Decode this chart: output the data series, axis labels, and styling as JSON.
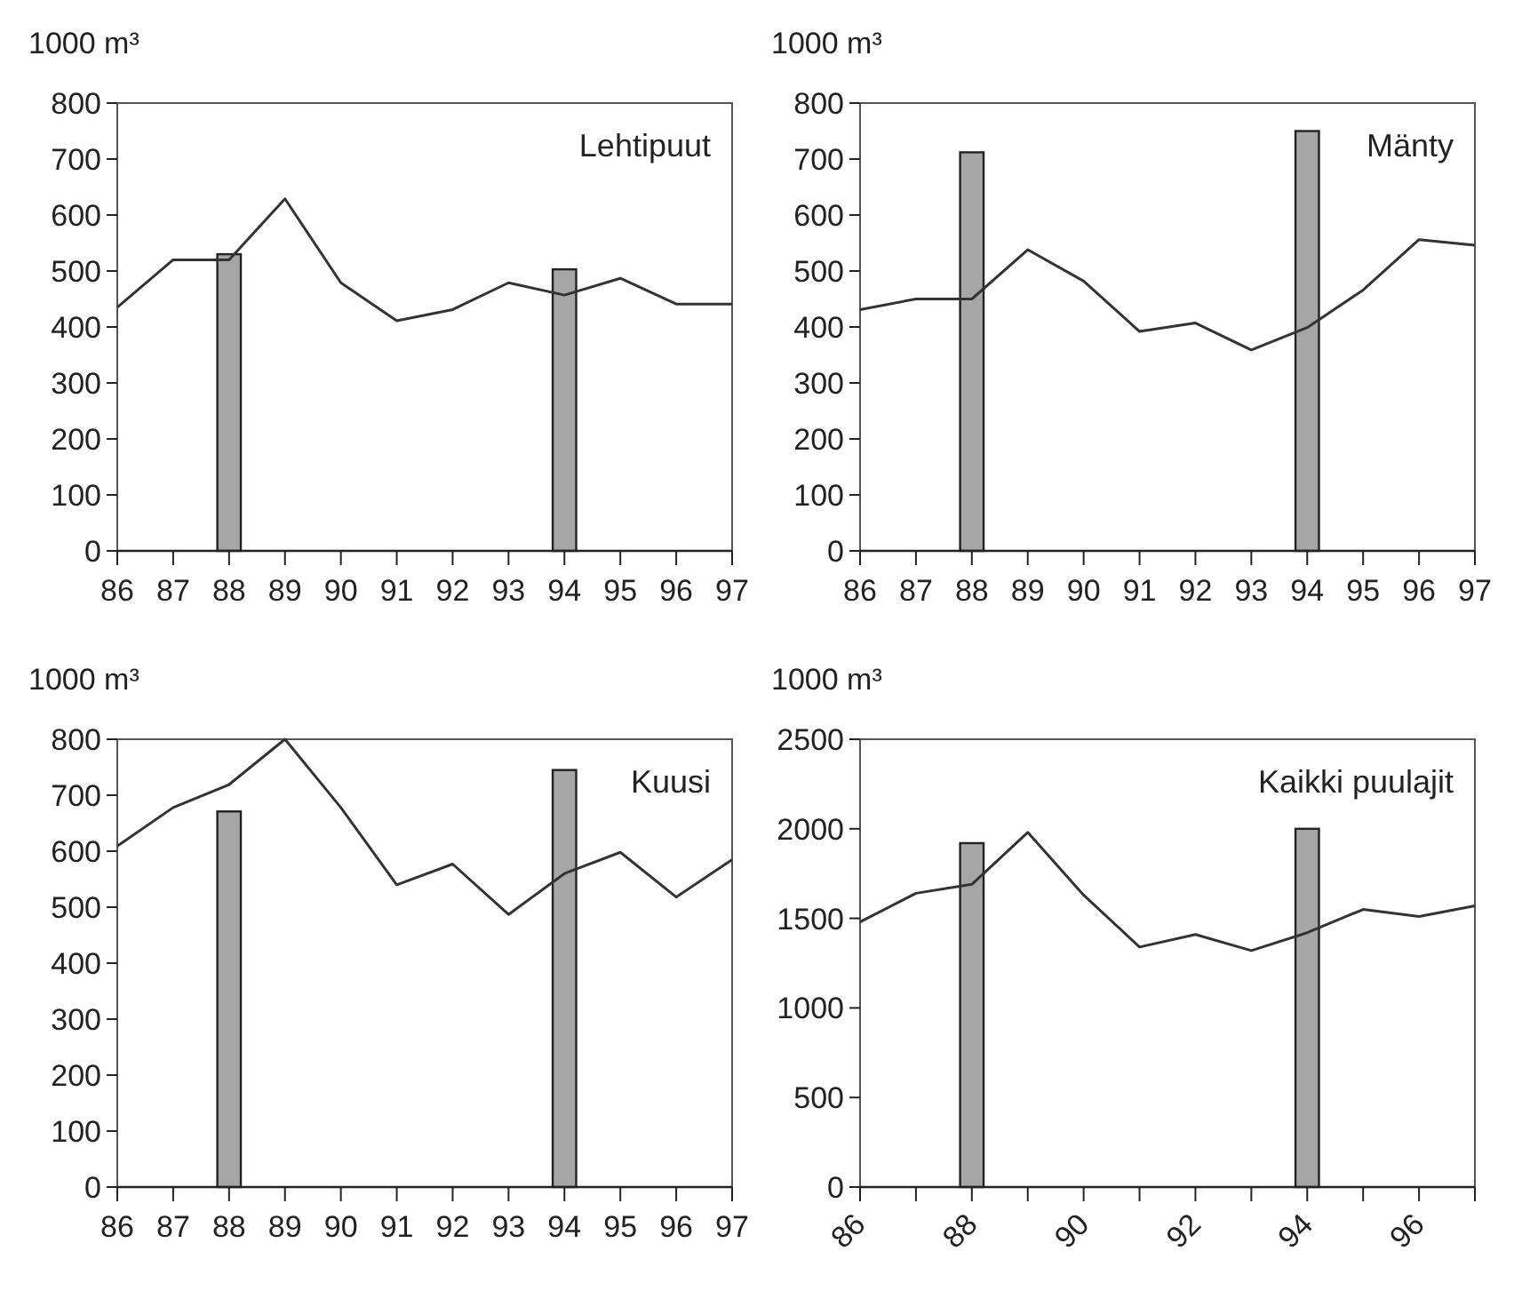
{
  "chart_data": [
    {
      "type": "line",
      "title": "Lehtipuut",
      "ylabel": "1000 m³",
      "categories": [
        "86",
        "87",
        "88",
        "89",
        "90",
        "91",
        "92",
        "93",
        "94",
        "95",
        "96",
        "97"
      ],
      "ylim": [
        0,
        800
      ],
      "yticks": [
        0,
        100,
        200,
        300,
        400,
        500,
        600,
        700,
        800
      ],
      "series": [
        {
          "type": "bar",
          "color": "#a6a6a6",
          "values": [
            null,
            null,
            530,
            null,
            null,
            null,
            null,
            null,
            503,
            null,
            null,
            null
          ]
        },
        {
          "color": "#333333",
          "values": [
            435,
            520,
            520,
            629,
            479,
            411,
            431,
            479,
            457,
            487,
            441,
            441
          ]
        }
      ]
    },
    {
      "type": "line",
      "title": "Mänty",
      "ylabel": "1000 m³",
      "categories": [
        "86",
        "87",
        "88",
        "89",
        "90",
        "91",
        "92",
        "93",
        "94",
        "95",
        "96",
        "97"
      ],
      "ylim": [
        0,
        800
      ],
      "yticks": [
        0,
        100,
        200,
        300,
        400,
        500,
        600,
        700,
        800
      ],
      "series": [
        {
          "type": "bar",
          "color": "#a6a6a6",
          "values": [
            null,
            null,
            712,
            null,
            null,
            null,
            null,
            null,
            750,
            null,
            null,
            null
          ]
        },
        {
          "color": "#333333",
          "values": [
            431,
            450,
            450,
            538,
            482,
            392,
            407,
            359,
            399,
            466,
            556,
            546
          ]
        }
      ]
    },
    {
      "type": "line",
      "title": "Kuusi",
      "ylabel": "1000 m³",
      "categories": [
        "86",
        "87",
        "88",
        "89",
        "90",
        "91",
        "92",
        "93",
        "94",
        "95",
        "96",
        "97"
      ],
      "ylim": [
        0,
        800
      ],
      "yticks": [
        0,
        100,
        200,
        300,
        400,
        500,
        600,
        700,
        800
      ],
      "series": [
        {
          "type": "bar",
          "color": "#a6a6a6",
          "values": [
            null,
            null,
            671,
            null,
            null,
            null,
            null,
            null,
            745,
            null,
            null,
            null
          ]
        },
        {
          "color": "#333333",
          "values": [
            609,
            678,
            719,
            800,
            678,
            540,
            577,
            487,
            560,
            598,
            518,
            585
          ]
        }
      ]
    },
    {
      "type": "line",
      "title": "Kaikki puulajit",
      "ylabel": "1000 m³",
      "categories": [
        "86",
        null,
        "88",
        null,
        "90",
        null,
        "92",
        null,
        "94",
        null,
        "96",
        null
      ],
      "ylim": [
        0,
        2500
      ],
      "yticks": [
        0,
        500,
        1000,
        1500,
        2000,
        2500
      ],
      "series": [
        {
          "type": "bar",
          "color": "#a6a6a6",
          "values": [
            null,
            null,
            1920,
            null,
            null,
            null,
            null,
            null,
            2000,
            null,
            null,
            null
          ]
        },
        {
          "color": "#333333",
          "values": [
            1480,
            1640,
            1690,
            1980,
            1630,
            1340,
            1410,
            1320,
            1420,
            1550,
            1510,
            1570
          ]
        }
      ]
    }
  ]
}
